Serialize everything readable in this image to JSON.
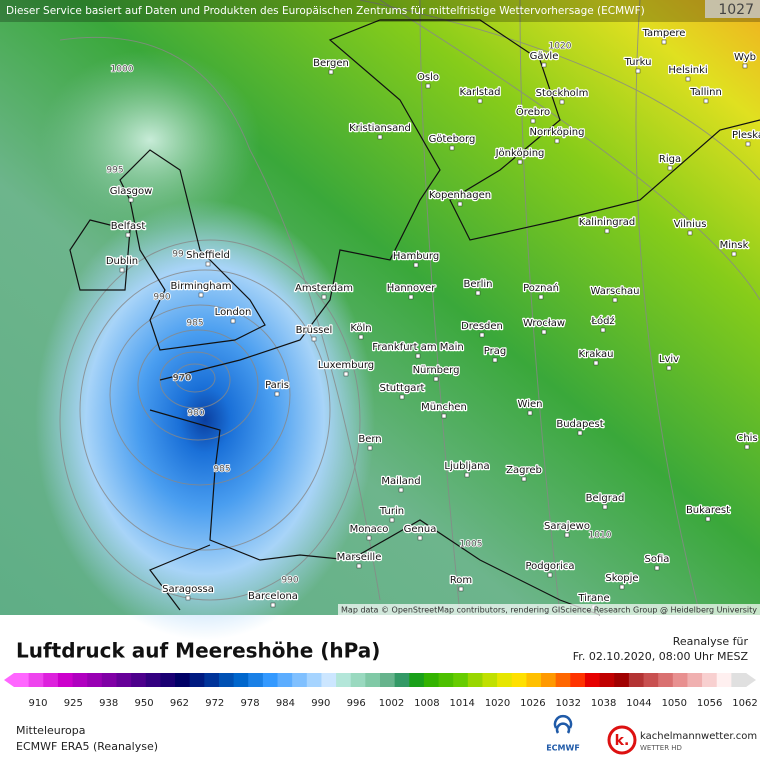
{
  "header": {
    "disclaimer": "Dieser Service basiert auf Daten und Produkten des Europäischen Zentrums für mittelfristige Wettervorhersage (ECMWF)",
    "max_label": "1027"
  },
  "cities": [
    "Bergen",
    "Oslo",
    "Karlstad",
    "Stockholm",
    "Gävle",
    "Tampere",
    "Turku",
    "Helsinki",
    "Tallinn",
    "Wyb",
    "Pleska",
    "Kristiansand",
    "Göteborg",
    "Örebro",
    "Norrköping",
    "Jönköping",
    "Riga",
    "Glasgow",
    "Kopenhagen",
    "Kaliningrad",
    "Vilnius",
    "Belfast",
    "Dublin",
    "Sheffield",
    "Hamburg",
    "Minsk",
    "Birmingham",
    "Amsterdam",
    "Hannover",
    "Berlin",
    "Poznań",
    "Warschau",
    "London",
    "Brüssel",
    "Köln",
    "Frankfurt am Main",
    "Dresden",
    "Wrocław",
    "Łódź",
    "Luxemburg",
    "Nürnberg",
    "Prag",
    "Krakau",
    "Lviv",
    "Paris",
    "Stuttgart",
    "München",
    "Wien",
    "Budapest",
    "Chis",
    "Bern",
    "Ljubljana",
    "Zagreb",
    "Mailand",
    "Belgrad",
    "Bukarest",
    "Turin",
    "Monaco",
    "Genua",
    "Sarajewo",
    "Marseille",
    "Sofia",
    "Podgorica",
    "Skopje",
    "Saragossa",
    "Barcelona",
    "Rom",
    "Tirane"
  ],
  "isobar_labels": [
    "1000",
    "995",
    "99",
    "990",
    "985",
    "970",
    "980",
    "985",
    "990",
    "1020",
    "1005",
    "1010"
  ],
  "attribution": "Map data © OpenStreetMap contributors, rendering GIScience Research Group @ Heidelberg University",
  "title": "Luftdruck auf Meereshöhe (hPa)",
  "info": {
    "line1": "Reanalyse für",
    "line2": "Fr. 02.10.2020, 08:00 Uhr MESZ"
  },
  "colorbar": {
    "ticks": [
      910,
      925,
      938,
      950,
      962,
      972,
      978,
      984,
      990,
      996,
      1002,
      1008,
      1014,
      1020,
      1026,
      1032,
      1038,
      1044,
      1050,
      1056,
      1062
    ],
    "colors": [
      "#ff66ff",
      "#ee44ee",
      "#dd22dd",
      "#cc00cc",
      "#b000c0",
      "#9900b3",
      "#8000a6",
      "#660099",
      "#4d008c",
      "#330080",
      "#1a0073",
      "#000066",
      "#001a80",
      "#003399",
      "#0050b3",
      "#0066cc",
      "#1a80e6",
      "#3399ff",
      "#5cadff",
      "#80c0ff",
      "#a6d4ff",
      "#cce6ff",
      "#b3e6d9",
      "#99d9bf",
      "#80c9a6",
      "#66b38c",
      "#339966",
      "#1aa01a",
      "#33b300",
      "#4dc000",
      "#66cc00",
      "#99d600",
      "#c0e000",
      "#e6e600",
      "#ffe000",
      "#ffc000",
      "#ff9900",
      "#ff6600",
      "#ff3300",
      "#e60000",
      "#c00000",
      "#a00000",
      "#b33333",
      "#c85050",
      "#d97070",
      "#e89090",
      "#f0b0b0",
      "#f8d0d0",
      "#fff0f0",
      "#e0e0e0"
    ]
  },
  "footer": {
    "region": "Mitteleuropa",
    "model": "ECMWF ERA5 (Reanalyse)",
    "ecmwf_logo": "ECMWF",
    "kw_mark": "k.",
    "kw_site": "kachelmannwetter.com",
    "kw_sub": "WETTER HD"
  }
}
